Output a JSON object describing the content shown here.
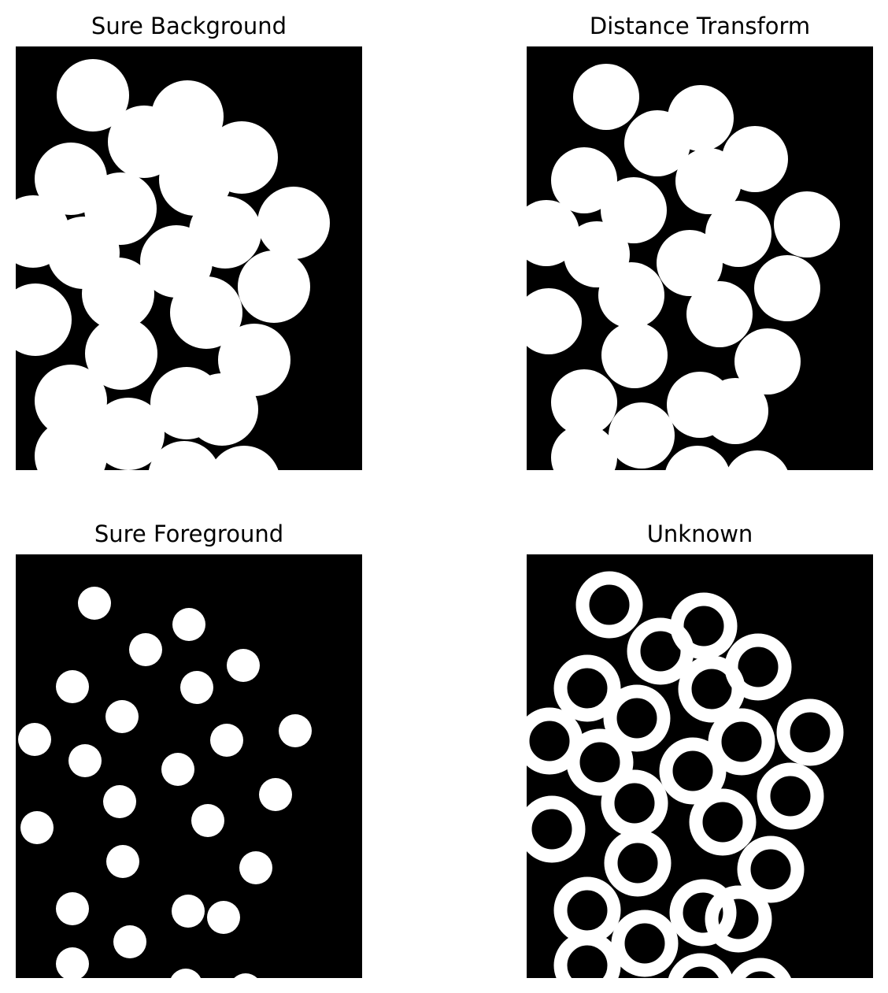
{
  "figure": {
    "panels": [
      {
        "title": "Sure Background",
        "content": "dilated-coins-mask"
      },
      {
        "title": "Distance Transform",
        "content": "coins-mask"
      },
      {
        "title": "Sure Foreground",
        "content": "coin-cores"
      },
      {
        "title": "Unknown",
        "content": "coin-rings"
      }
    ]
  },
  "colors": {
    "foreground": "#ffffff",
    "background": "#000000"
  }
}
